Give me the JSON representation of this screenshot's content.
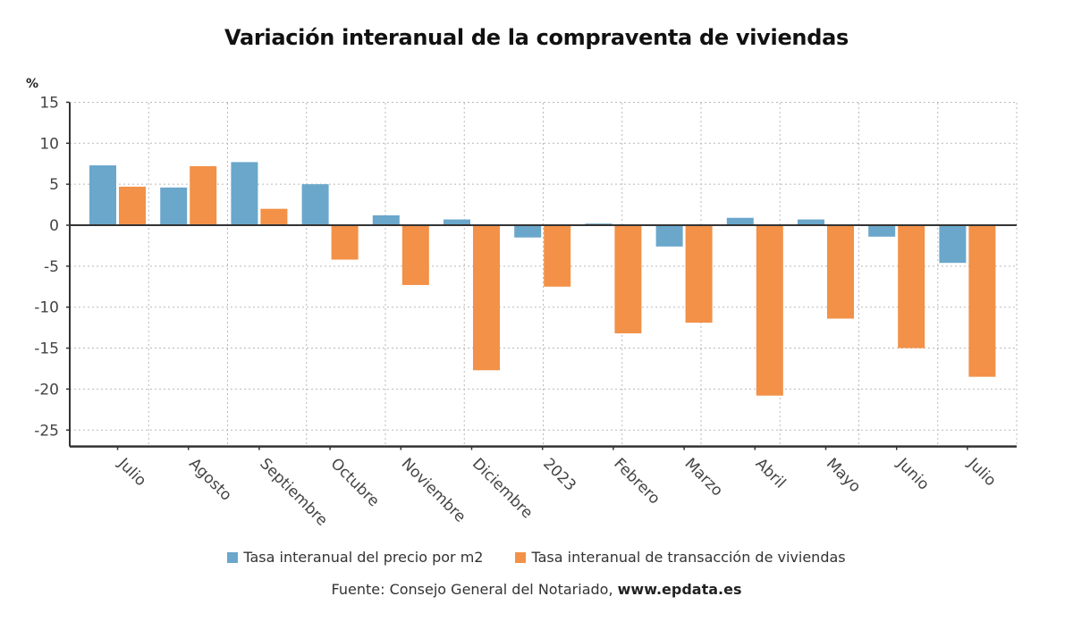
{
  "chart_data": {
    "type": "bar",
    "title": "Variación interanual de la compraventa de viviendas",
    "ylabel": "%",
    "xlabel": "",
    "ylim": [
      -27,
      15
    ],
    "yticks": [
      15,
      10,
      5,
      0,
      -5,
      -10,
      -15,
      -20,
      -25
    ],
    "grid": true,
    "legend_position": "bottom",
    "categories": [
      "Julio",
      "Agosto",
      "Septiembre",
      "Octubre",
      "Noviembre",
      "Diciembre",
      "2023",
      "Febrero",
      "Marzo",
      "Abril",
      "Mayo",
      "Junio",
      "Julio"
    ],
    "series": [
      {
        "name": "Tasa interanual del precio por m2",
        "color": "#6aa7cb",
        "values": [
          7.3,
          4.6,
          7.7,
          5.0,
          1.2,
          0.7,
          -1.5,
          0.2,
          -2.6,
          0.9,
          0.7,
          -1.4,
          -4.6
        ]
      },
      {
        "name": "Tasa interanual de transacción de viviendas",
        "color": "#f29147",
        "values": [
          4.7,
          7.2,
          2.0,
          -4.2,
          -7.3,
          -17.7,
          -7.5,
          -13.2,
          -11.9,
          -20.8,
          -11.4,
          -15.0,
          -18.5
        ]
      }
    ]
  },
  "source": {
    "prefix": "Fuente: Consejo General del Notariado, ",
    "link": "www.epdata.es"
  }
}
